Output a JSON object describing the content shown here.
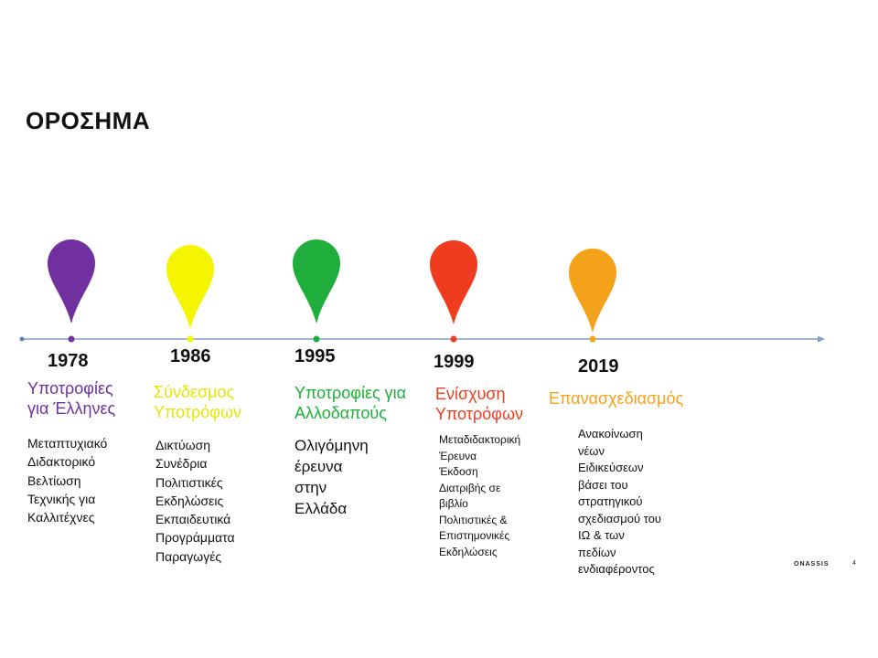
{
  "slide": {
    "title": "ΟΡΟΣΗΜΑ",
    "footer_logo": "ONASSIS",
    "page_number": "4"
  },
  "milestones": [
    {
      "year": "1978",
      "color": "#7030a0",
      "heading_lines": [
        "Υποτροφίες",
        "για Έλληνες"
      ],
      "desc_lines": [
        "Μεταπτυχιακό",
        "Διδακτορικό",
        "Βελτίωση",
        "Τεχνικής για",
        "Καλλιτέχνες"
      ]
    },
    {
      "year": "1986",
      "color": "#f5f500",
      "heading_lines": [
        "Σύνδεσμος",
        "Υποτρόφων"
      ],
      "desc_lines": [
        "Δικτύωση",
        "Συνέδρια",
        "Πολιτιστικές",
        "Εκδηλώσεις",
        "Εκπαιδευτικά",
        "Προγράμματα",
        "Παραγωγές"
      ]
    },
    {
      "year": "1995",
      "color": "#1fae3b",
      "heading_lines": [
        "Υποτροφίες για",
        "Αλλοδαπούς"
      ],
      "desc_lines": [
        "Ολιγόμηνη",
        "έρευνα",
        "στην",
        "Ελλάδα"
      ]
    },
    {
      "year": "1999",
      "color": "#f03c1e",
      "heading_lines": [
        "Ενίσχυση",
        "Υποτρόφων"
      ],
      "desc_lines": [
        "Μεταδιδακτορική",
        "Έρευνα",
        "Έκδοση",
        "Διατριβής σε",
        "βιβλίο",
        "Πολιτιστικές &",
        "Επιστημονικές",
        "Εκδηλώσεις"
      ]
    },
    {
      "year": "2019",
      "color": "#f5a21b",
      "heading_lines": [
        "Επανασχεδιασμός"
      ],
      "desc_lines": [
        "Ανακοίνωση",
        "νέων",
        "Ειδικεύσεων",
        "βάσει του",
        "στρατηγικού",
        "σχεδιασμού του",
        "ΙΩ & των",
        "πεδίων",
        "ενδιαφέροντος"
      ]
    }
  ]
}
